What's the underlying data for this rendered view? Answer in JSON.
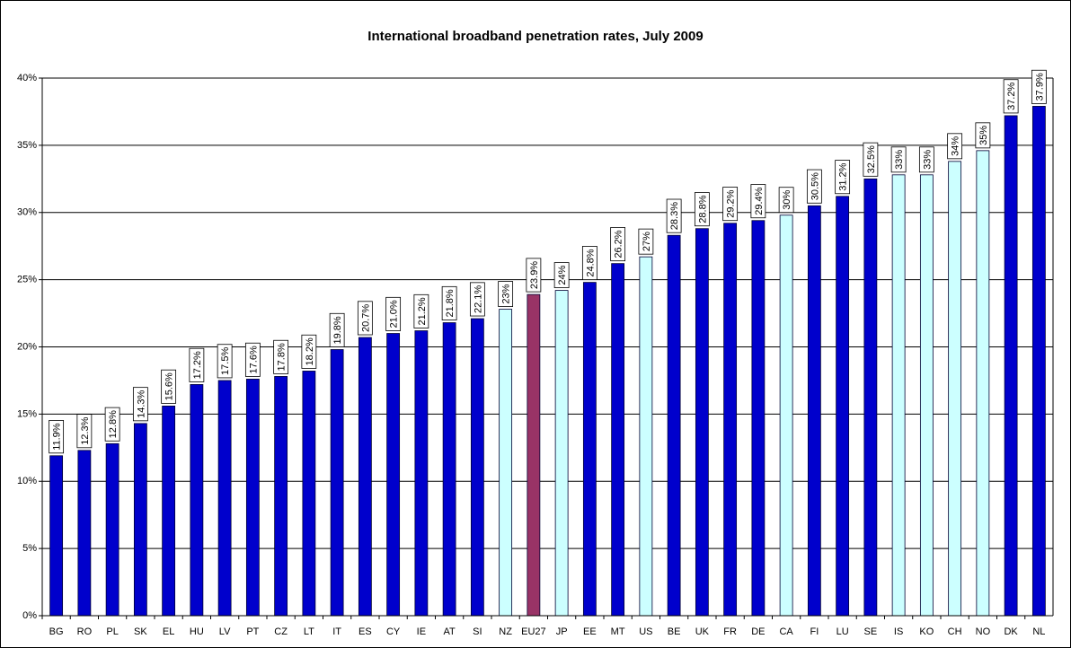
{
  "chart_data": {
    "type": "bar",
    "title": "International broadband penetration rates, July 2009",
    "categories": [
      "BG",
      "RO",
      "PL",
      "SK",
      "EL",
      "HU",
      "LV",
      "PT",
      "CZ",
      "LT",
      "IT",
      "ES",
      "CY",
      "IE",
      "AT",
      "SI",
      "NZ",
      "EU27",
      "JP",
      "EE",
      "MT",
      "US",
      "BE",
      "UK",
      "FR",
      "DE",
      "CA",
      "FI",
      "LU",
      "SE",
      "IS",
      "KO",
      "CH",
      "NO",
      "DK",
      "NL"
    ],
    "values": [
      11.9,
      12.3,
      12.8,
      14.3,
      15.6,
      17.2,
      17.5,
      17.6,
      17.8,
      18.2,
      19.8,
      20.7,
      21.0,
      21.2,
      21.8,
      22.1,
      22.8,
      23.9,
      24.2,
      24.8,
      26.2,
      26.7,
      28.3,
      28.8,
      29.2,
      29.4,
      29.8,
      30.5,
      31.2,
      32.5,
      32.8,
      32.8,
      33.8,
      34.6,
      37.2,
      37.9
    ],
    "value_labels": [
      "11.9%",
      "12.3%",
      "12.8%",
      "14.3%",
      "15.6%",
      "17.2%",
      "17.5%",
      "17.6%",
      "17.8%",
      "18.2%",
      "19.8%",
      "20.7%",
      "21.0%",
      "21.2%",
      "21.8%",
      "22.1%",
      "23%",
      "23.9%",
      "24%",
      "24.8%",
      "26.2%",
      "27%",
      "28.3%",
      "28.8%",
      "29.2%",
      "29.4%",
      "30%",
      "30.5%",
      "31.2%",
      "32.5%",
      "33%",
      "33%",
      "34%",
      "35%",
      "37.2%",
      "37.9%"
    ],
    "colors": [
      "#0000cc",
      "#0000cc",
      "#0000cc",
      "#0000cc",
      "#0000cc",
      "#0000cc",
      "#0000cc",
      "#0000cc",
      "#0000cc",
      "#0000cc",
      "#0000cc",
      "#0000cc",
      "#0000cc",
      "#0000cc",
      "#0000cc",
      "#0000cc",
      "#ccffff",
      "#993366",
      "#ccffff",
      "#0000cc",
      "#0000cc",
      "#ccffff",
      "#0000cc",
      "#0000cc",
      "#0000cc",
      "#0000cc",
      "#ccffff",
      "#0000cc",
      "#0000cc",
      "#0000cc",
      "#ccffff",
      "#ccffff",
      "#ccffff",
      "#ccffff",
      "#0000cc",
      "#0000cc"
    ],
    "ylim": [
      0,
      40
    ],
    "yticks": [
      {
        "value": 0,
        "label": "0%"
      },
      {
        "value": 5,
        "label": "5%"
      },
      {
        "value": 10,
        "label": "10%"
      },
      {
        "value": 15,
        "label": "15%"
      },
      {
        "value": 20,
        "label": "20%"
      },
      {
        "value": 25,
        "label": "25%"
      },
      {
        "value": 30,
        "label": "30%"
      },
      {
        "value": 35,
        "label": "35%"
      },
      {
        "value": 40,
        "label": "40%"
      }
    ],
    "grid": true
  }
}
